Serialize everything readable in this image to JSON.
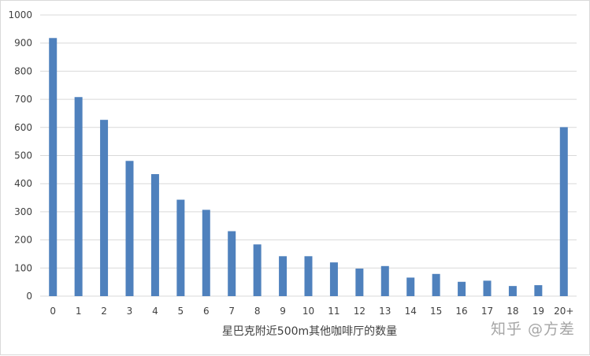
{
  "chart_data": {
    "type": "bar",
    "title": "",
    "xlabel": "星巴克附近500m其他咖啡厅的数量",
    "ylabel": "",
    "ylim": [
      0,
      1000
    ],
    "yticks": [
      0,
      100,
      200,
      300,
      400,
      500,
      600,
      700,
      800,
      900,
      1000
    ],
    "grid": true,
    "categories": [
      "0",
      "1",
      "2",
      "3",
      "4",
      "5",
      "6",
      "7",
      "8",
      "9",
      "10",
      "11",
      "12",
      "13",
      "14",
      "15",
      "16",
      "17",
      "18",
      "19",
      "20+"
    ],
    "values": [
      918,
      708,
      627,
      481,
      434,
      343,
      307,
      231,
      184,
      142,
      142,
      120,
      98,
      107,
      66,
      79,
      51,
      55,
      36,
      39,
      601
    ],
    "bar_color": "#4f81bd",
    "grid_color": "#d9d9d9"
  },
  "watermark": "知乎 @方差"
}
